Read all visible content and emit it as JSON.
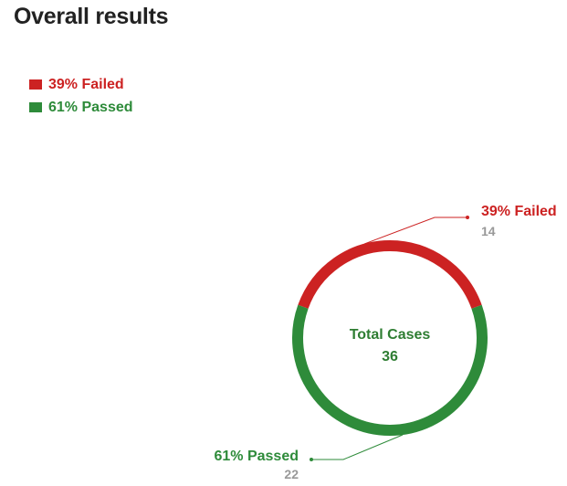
{
  "title": "Overall results",
  "colors": {
    "failed": "#cc2222",
    "passed": "#2e8b3a",
    "count": "#999999",
    "center": "#2e7d32"
  },
  "legend": [
    {
      "label": "39% Failed",
      "color": "#cc2222"
    },
    {
      "label": "61% Passed",
      "color": "#2e8b3a"
    }
  ],
  "chart_data": {
    "type": "pie",
    "variant": "donut",
    "title": "Overall results",
    "center_label": "Total Cases",
    "center_value": "36",
    "legend_position": "top-left",
    "slices": [
      {
        "name": "Failed",
        "label": "39% Failed",
        "percent": 39,
        "value": 14,
        "value_label": "14",
        "color": "#cc2222"
      },
      {
        "name": "Passed",
        "label": "61% Passed",
        "percent": 61,
        "value": 22,
        "value_label": "22",
        "color": "#2e8b3a"
      }
    ]
  }
}
